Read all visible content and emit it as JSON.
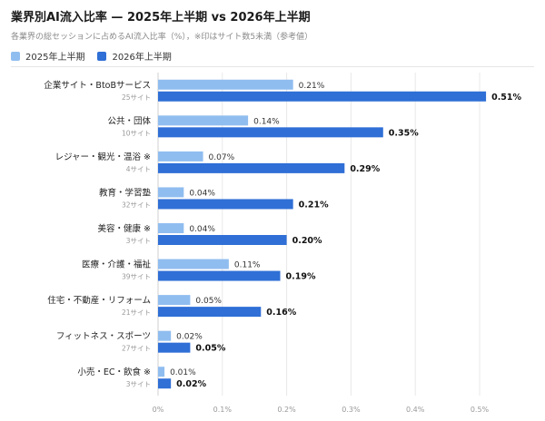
{
  "header": {
    "title": "業界別AI流入比率 — 2025年上半期 vs 2026年上半期",
    "subtitle": "各業界の総セッションに占めるAI流入比率（%），※印はサイト数5未満（参考値）"
  },
  "legend": [
    {
      "name": "2025年上半期",
      "color": "#90bdf0"
    },
    {
      "name": "2026年上半期",
      "color": "#2f6fd6"
    }
  ],
  "chart_data": {
    "type": "bar",
    "orientation": "horizontal",
    "categories": [
      "企業サイト・BtoBサービス",
      "公共・団体",
      "レジャー・観光・温浴 ※",
      "教育・学習塾",
      "美容・健康 ※",
      "医療・介護・福祉",
      "住宅・不動産・リフォーム",
      "フィットネス・スポーツ",
      "小売・EC・飲食 ※"
    ],
    "site_counts": [
      "25サイト",
      "10サイト",
      "4サイト",
      "32サイト",
      "3サイト",
      "39サイト",
      "21サイト",
      "27サイト",
      "3サイト"
    ],
    "series": [
      {
        "name": "2025年上半期",
        "color": "#90bdf0",
        "values": [
          0.21,
          0.14,
          0.07,
          0.04,
          0.04,
          0.11,
          0.05,
          0.02,
          0.01
        ]
      },
      {
        "name": "2026年上半期",
        "color": "#2f6fd6",
        "values": [
          0.51,
          0.35,
          0.29,
          0.21,
          0.2,
          0.19,
          0.16,
          0.05,
          0.02
        ]
      }
    ],
    "value_suffix": "%",
    "xlim": [
      0,
      0.5
    ],
    "xticks": [
      "0%",
      "0.1%",
      "0.2%",
      "0.3%",
      "0.4%",
      "0.5%"
    ],
    "grid": true
  }
}
